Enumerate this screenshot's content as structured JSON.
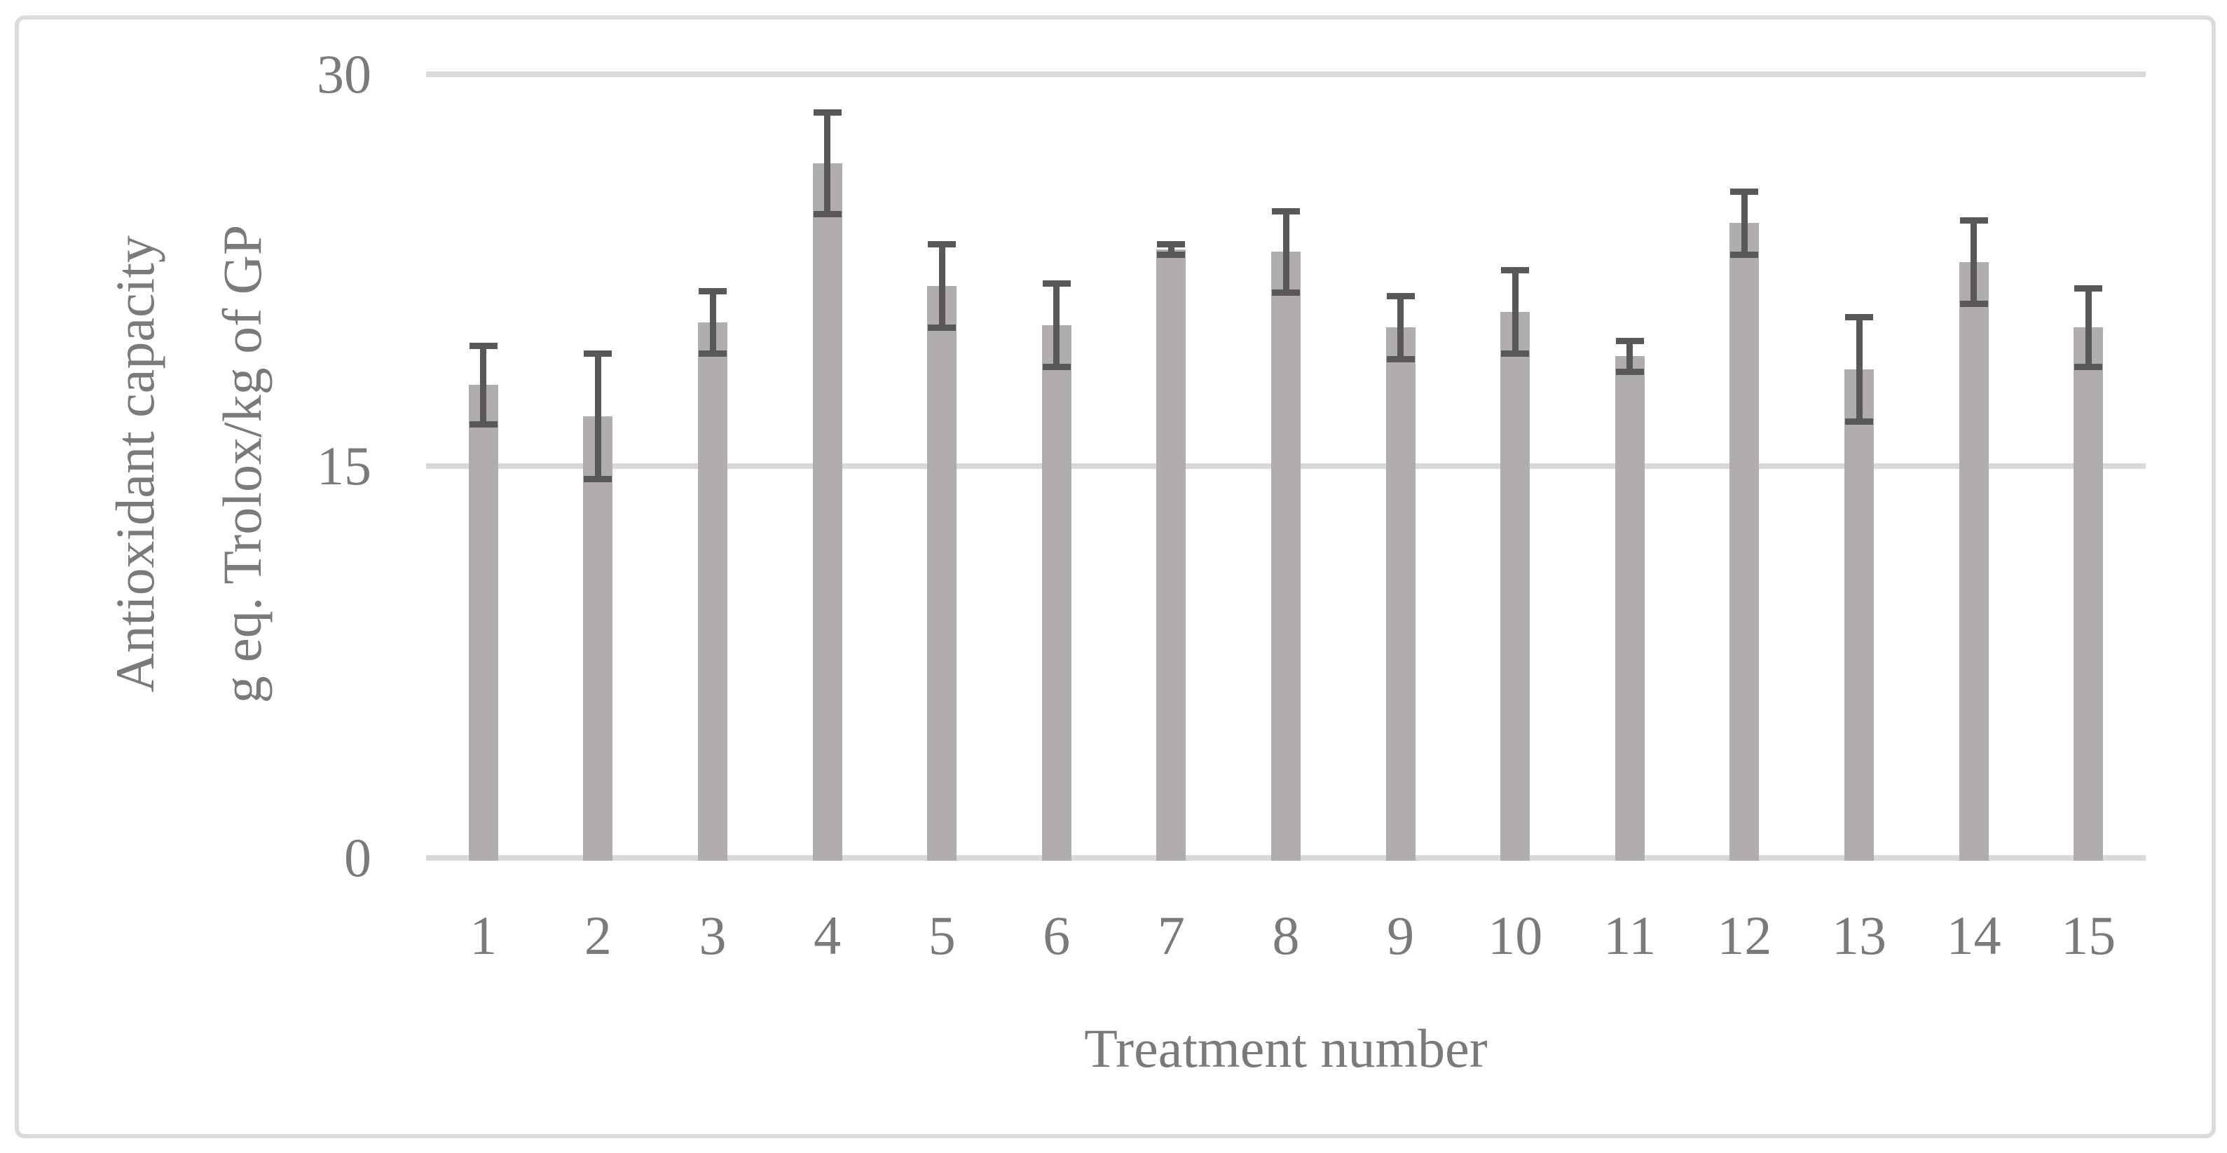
{
  "chart_data": {
    "type": "bar",
    "title": "",
    "categories": [
      "1",
      "2",
      "3",
      "4",
      "5",
      "6",
      "7",
      "8",
      "9",
      "10",
      "11",
      "12",
      "13",
      "14",
      "15"
    ],
    "values": [
      18.1,
      16.9,
      20.5,
      26.6,
      21.9,
      20.4,
      23.3,
      23.2,
      20.3,
      20.9,
      19.2,
      24.3,
      18.7,
      22.8,
      20.3
    ],
    "error_bars": [
      1.5,
      2.4,
      1.2,
      1.95,
      1.6,
      1.6,
      0.2,
      1.55,
      1.2,
      1.6,
      0.6,
      1.2,
      2.0,
      1.6,
      1.5
    ],
    "xlabel": "Treatment number",
    "ylabel_lines": [
      "Antioxidant capacity",
      "g eq. Trolox/kg of GP"
    ],
    "ylabel": "Antioxidant capacity g eq. Trolox/kg of GP",
    "ylim": [
      0,
      30
    ],
    "yticks": [
      0,
      15,
      30
    ],
    "grid": "horizontal-only",
    "legend": "none"
  },
  "colors": {
    "background": "#ffffff",
    "bar_fill": "#b1adad",
    "error_bar": "#585858",
    "gridline": "#d9d9d9",
    "chart_border": "#dbdbdb",
    "text": "#7a7a7a"
  }
}
